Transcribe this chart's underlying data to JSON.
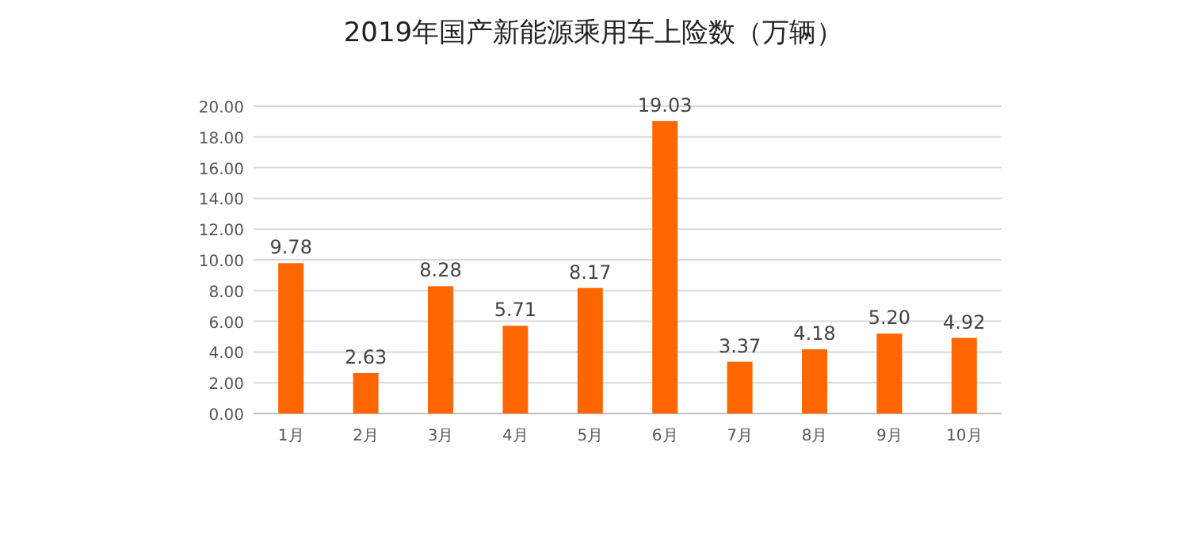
{
  "chart_data": {
    "type": "bar",
    "title": "2019年国产新能源乘用车上险数（万辆）",
    "categories": [
      "1月",
      "2月",
      "3月",
      "4月",
      "5月",
      "6月",
      "7月",
      "8月",
      "9月",
      "10月"
    ],
    "values": [
      9.78,
      2.63,
      8.28,
      5.71,
      8.17,
      19.03,
      3.37,
      4.18,
      5.2,
      4.92
    ],
    "value_labels": [
      "9.78",
      "2.63",
      "8.28",
      "5.71",
      "8.17",
      "19.03",
      "3.37",
      "4.18",
      "5.20",
      "4.92"
    ],
    "color": "#ff6600",
    "ylim": [
      0,
      20
    ],
    "yticks": [
      {
        "value": 0,
        "label": "0.00"
      },
      {
        "value": 2,
        "label": "2.00"
      },
      {
        "value": 4,
        "label": "4.00"
      },
      {
        "value": 6,
        "label": "6.00"
      },
      {
        "value": 8,
        "label": "8.00"
      },
      {
        "value": 10,
        "label": "10.00"
      },
      {
        "value": 12,
        "label": "12.00"
      },
      {
        "value": 14,
        "label": "14.00"
      },
      {
        "value": 16,
        "label": "16.00"
      },
      {
        "value": 18,
        "label": "18.00"
      },
      {
        "value": 20,
        "label": "20.00"
      }
    ],
    "grid": "y"
  }
}
